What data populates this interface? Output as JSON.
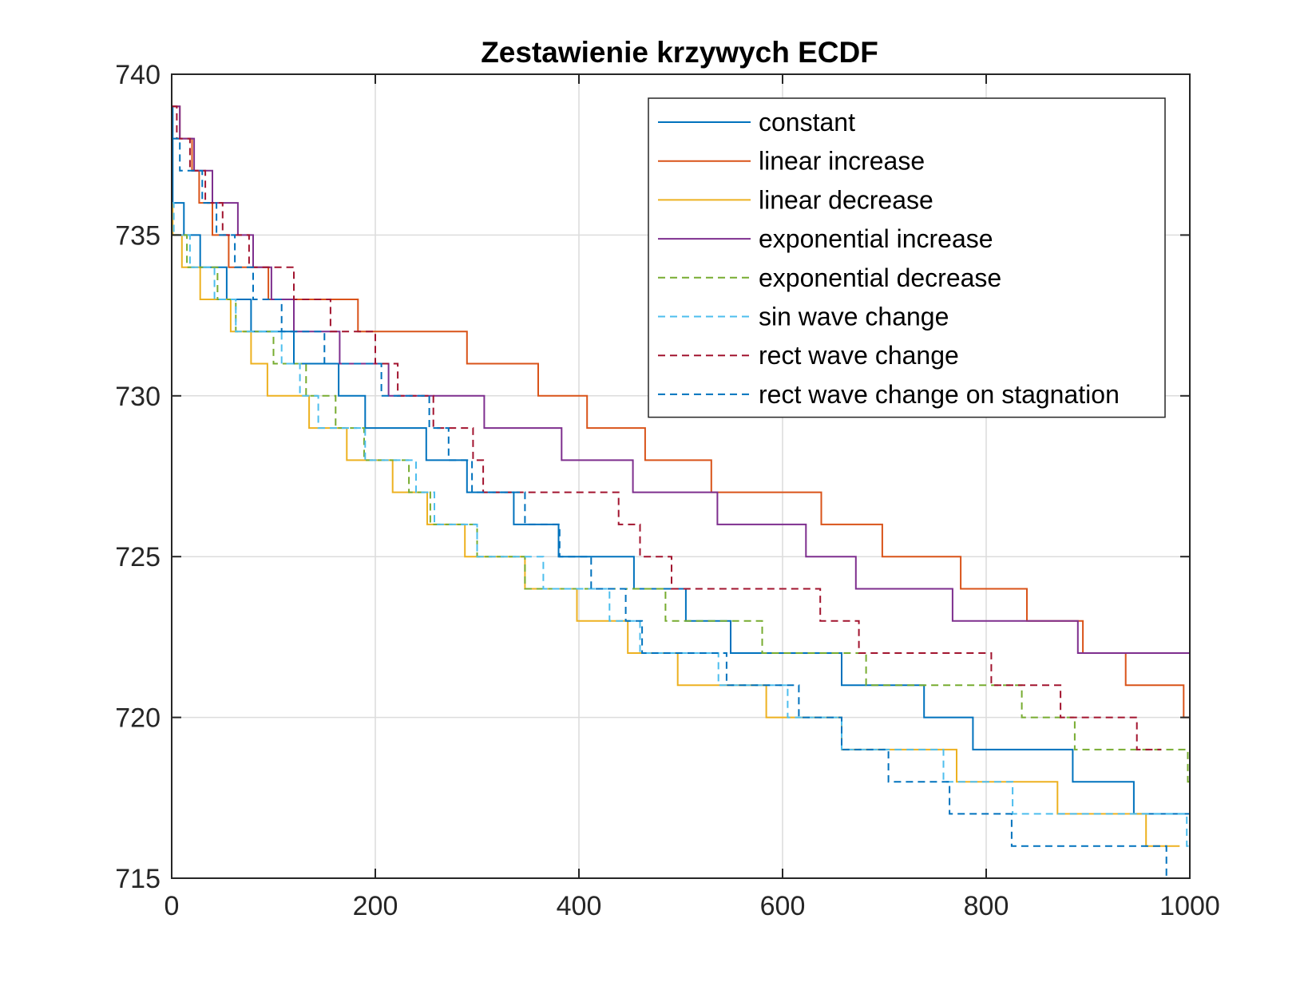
{
  "chart_data": {
    "type": "line",
    "title": "Zestawienie krzywych ECDF",
    "xlabel": "",
    "ylabel": "",
    "xlim": [
      0,
      1000
    ],
    "ylim": [
      715,
      740
    ],
    "xticks": [
      0,
      200,
      400,
      600,
      800,
      1000
    ],
    "yticks": [
      715,
      720,
      725,
      730,
      735,
      740
    ],
    "xtick_labels": [
      "0",
      "200",
      "400",
      "600",
      "800",
      "1000"
    ],
    "ytick_labels": [
      "715",
      "720",
      "725",
      "730",
      "735",
      "740"
    ],
    "grid": true,
    "legend": {
      "position": "top-right",
      "box": true
    },
    "step": "post",
    "series": [
      {
        "name": "constant",
        "color": "#0072BD",
        "dash": "solid",
        "points": [
          [
            0,
            739
          ],
          [
            1,
            736
          ],
          [
            12,
            735
          ],
          [
            28,
            734
          ],
          [
            54,
            733
          ],
          [
            78,
            732
          ],
          [
            120,
            731
          ],
          [
            164,
            730
          ],
          [
            190,
            729
          ],
          [
            250,
            728
          ],
          [
            290,
            727
          ],
          [
            336,
            726
          ],
          [
            380,
            725
          ],
          [
            454,
            724
          ],
          [
            505,
            723
          ],
          [
            549,
            722
          ],
          [
            658,
            721
          ],
          [
            739,
            720
          ],
          [
            787,
            719
          ],
          [
            885,
            718
          ],
          [
            945,
            717
          ],
          [
            1000,
            717
          ]
        ]
      },
      {
        "name": "linear increase",
        "color": "#D95319",
        "dash": "solid",
        "points": [
          [
            0,
            739
          ],
          [
            8,
            738
          ],
          [
            20,
            737
          ],
          [
            27,
            736
          ],
          [
            40,
            735
          ],
          [
            56,
            734
          ],
          [
            95,
            733
          ],
          [
            183,
            732
          ],
          [
            290,
            731
          ],
          [
            360,
            730
          ],
          [
            408,
            729
          ],
          [
            465,
            728
          ],
          [
            530,
            727
          ],
          [
            638,
            726
          ],
          [
            698,
            725
          ],
          [
            775,
            724
          ],
          [
            840,
            723
          ],
          [
            895,
            722
          ],
          [
            937,
            721
          ],
          [
            994,
            720
          ],
          [
            1000,
            720
          ]
        ]
      },
      {
        "name": "linear decrease",
        "color": "#EDB120",
        "dash": "solid",
        "points": [
          [
            0,
            736
          ],
          [
            1,
            735
          ],
          [
            10,
            734
          ],
          [
            28,
            733
          ],
          [
            58,
            732
          ],
          [
            78,
            731
          ],
          [
            94,
            730
          ],
          [
            135,
            729
          ],
          [
            172,
            728
          ],
          [
            217,
            727
          ],
          [
            251,
            726
          ],
          [
            288,
            725
          ],
          [
            347,
            724
          ],
          [
            398,
            723
          ],
          [
            448,
            722
          ],
          [
            497,
            721
          ],
          [
            584,
            720
          ],
          [
            658,
            719
          ],
          [
            771,
            718
          ],
          [
            870,
            717
          ],
          [
            957,
            716
          ],
          [
            990,
            716
          ]
        ]
      },
      {
        "name": "exponential increase",
        "color": "#7E2F8E",
        "dash": "solid",
        "points": [
          [
            0,
            739
          ],
          [
            8,
            738
          ],
          [
            22,
            737
          ],
          [
            40,
            736
          ],
          [
            65,
            735
          ],
          [
            80,
            734
          ],
          [
            98,
            733
          ],
          [
            120,
            732
          ],
          [
            165,
            731
          ],
          [
            213,
            730
          ],
          [
            307,
            729
          ],
          [
            383,
            728
          ],
          [
            453,
            727
          ],
          [
            536,
            726
          ],
          [
            623,
            725
          ],
          [
            672,
            724
          ],
          [
            767,
            723
          ],
          [
            890,
            722
          ],
          [
            1000,
            722
          ]
        ]
      },
      {
        "name": "exponential decrease",
        "color": "#77AC30",
        "dash": "dashed",
        "points": [
          [
            0,
            735
          ],
          [
            15,
            734
          ],
          [
            45,
            733
          ],
          [
            63,
            732
          ],
          [
            100,
            731
          ],
          [
            132,
            730
          ],
          [
            161,
            729
          ],
          [
            189,
            728
          ],
          [
            233,
            727
          ],
          [
            254,
            726
          ],
          [
            300,
            725
          ],
          [
            347,
            724
          ],
          [
            485,
            723
          ],
          [
            580,
            722
          ],
          [
            682,
            721
          ],
          [
            835,
            720
          ],
          [
            887,
            719
          ],
          [
            998,
            718
          ],
          [
            1000,
            718
          ]
        ]
      },
      {
        "name": "sin wave change",
        "color": "#4DBEEE",
        "dash": "dashed",
        "points": [
          [
            0,
            736
          ],
          [
            2,
            735
          ],
          [
            18,
            734
          ],
          [
            42,
            733
          ],
          [
            63,
            732
          ],
          [
            108,
            731
          ],
          [
            126,
            730
          ],
          [
            144,
            729
          ],
          [
            190,
            728
          ],
          [
            240,
            727
          ],
          [
            258,
            726
          ],
          [
            300,
            725
          ],
          [
            365,
            724
          ],
          [
            430,
            723
          ],
          [
            460,
            722
          ],
          [
            537,
            721
          ],
          [
            605,
            720
          ],
          [
            658,
            719
          ],
          [
            758,
            718
          ],
          [
            826,
            717
          ],
          [
            997,
            716
          ],
          [
            1000,
            716
          ]
        ]
      },
      {
        "name": "rect wave change",
        "color": "#A2142F",
        "dash": "dashed",
        "points": [
          [
            0,
            739
          ],
          [
            5,
            738
          ],
          [
            18,
            737
          ],
          [
            33,
            736
          ],
          [
            50,
            735
          ],
          [
            76,
            734
          ],
          [
            120,
            733
          ],
          [
            156,
            732
          ],
          [
            200,
            731
          ],
          [
            222,
            730
          ],
          [
            257,
            729
          ],
          [
            296,
            728
          ],
          [
            306,
            727
          ],
          [
            439,
            726
          ],
          [
            460,
            725
          ],
          [
            491,
            724
          ],
          [
            637,
            723
          ],
          [
            675,
            722
          ],
          [
            805,
            721
          ],
          [
            873,
            720
          ],
          [
            948,
            719
          ],
          [
            972,
            719
          ]
        ]
      },
      {
        "name": "rect wave change on stagnation",
        "color": "#0072BD",
        "dash": "dashed",
        "points": [
          [
            0,
            738
          ],
          [
            8,
            737
          ],
          [
            30,
            736
          ],
          [
            44,
            735
          ],
          [
            62,
            734
          ],
          [
            80,
            733
          ],
          [
            108,
            732
          ],
          [
            150,
            731
          ],
          [
            206,
            730
          ],
          [
            253,
            729
          ],
          [
            272,
            728
          ],
          [
            295,
            727
          ],
          [
            347,
            726
          ],
          [
            381,
            725
          ],
          [
            412,
            724
          ],
          [
            446,
            723
          ],
          [
            462,
            722
          ],
          [
            545,
            721
          ],
          [
            616,
            720
          ],
          [
            658,
            719
          ],
          [
            704,
            718
          ],
          [
            764,
            717
          ],
          [
            825,
            716
          ],
          [
            977,
            715
          ],
          [
            985,
            715
          ]
        ]
      }
    ]
  }
}
